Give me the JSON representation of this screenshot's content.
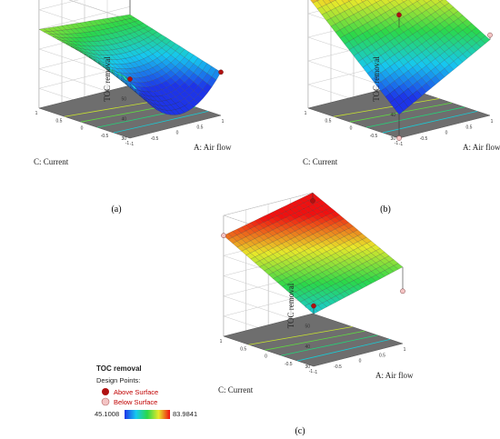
{
  "chart_data": [
    {
      "type": "surface3d",
      "panel_label": "(a)",
      "zlabel": "TOC removal",
      "xlabel": "A: Air flow",
      "ylabel": "C: Current",
      "zlim": [
        30,
        90
      ],
      "zticks": [
        30,
        40,
        50,
        60,
        70,
        80,
        90
      ],
      "xticks": [
        -1,
        -0.5,
        0,
        0.5,
        1
      ],
      "yticks": [
        -1,
        -0.5,
        0,
        0.5,
        1
      ],
      "x_tick_labels": [
        "-1",
        "-0.5",
        "0",
        "0.5",
        "1"
      ],
      "y_tick_labels": [
        "-1",
        "-0.5",
        "0",
        "0.5",
        "1"
      ],
      "surface_corners": {
        "A-1_C-1": 60,
        "A1_C-1": 52,
        "A-1_C1": 70,
        "A1_C1": 66,
        "A0_C-1": 36
      },
      "points": [
        {
          "A": -1,
          "C": -1,
          "value": 60,
          "position": "above"
        },
        {
          "A": 1,
          "C": 1,
          "value": 80,
          "position": "above"
        },
        {
          "A": 1,
          "C": -1,
          "value": 52,
          "position": "above"
        }
      ]
    },
    {
      "type": "surface3d",
      "panel_label": "(b)",
      "zlabel": "TOC removal",
      "xlabel": "A: Air flow",
      "ylabel": "C: Current",
      "zlim": [
        30,
        80
      ],
      "zticks": [
        30,
        40,
        50,
        60,
        70,
        80
      ],
      "xticks": [
        -1,
        -0.5,
        0,
        0.5,
        1
      ],
      "yticks": [
        -1,
        -0.5,
        0,
        0.5,
        1
      ],
      "x_tick_labels": [
        "-1",
        "-0.5",
        "0",
        "0.5",
        "1"
      ],
      "y_tick_labels": [
        "-1",
        "-0.5",
        "0",
        "0.5",
        "1"
      ],
      "surface_corners": {
        "A-1_C-1": 40,
        "A1_C-1": 62,
        "A-1_C1": 77,
        "A1_C1": 84
      },
      "points": [
        {
          "A": -1,
          "C": 1,
          "value": 78,
          "position": "above"
        },
        {
          "A": 0,
          "C": 0,
          "value": 71,
          "position": "above"
        },
        {
          "A": 1,
          "C": -1,
          "value": 64,
          "position": "below"
        },
        {
          "A": -1,
          "C": -1,
          "value": 30,
          "position": "below"
        }
      ]
    },
    {
      "type": "surface3d",
      "panel_label": "(c)",
      "zlabel": "TOC removal",
      "xlabel": "A: Air flow",
      "ylabel": "C: Current",
      "zlim": [
        30,
        90
      ],
      "zticks": [
        30,
        40,
        50,
        60,
        70,
        80,
        90
      ],
      "xticks": [
        -1,
        -0.5,
        0,
        0.5,
        1
      ],
      "yticks": [
        -1,
        -0.5,
        0,
        0.5,
        1
      ],
      "x_tick_labels": [
        "-1",
        "-0.5",
        "0",
        "0.5",
        "1"
      ],
      "y_tick_labels": [
        "-1",
        "-0.5",
        "0",
        "0.5",
        "1"
      ],
      "surface_corners": {
        "A-1_C-1": 56,
        "A1_C-1": 68,
        "A-1_C1": 80,
        "A1_C1": 90
      },
      "points": [
        {
          "A": -1,
          "C": -1,
          "value": 60,
          "position": "above"
        },
        {
          "A": 1,
          "C": 1,
          "value": 86,
          "position": "above"
        },
        {
          "A": -1,
          "C": 1,
          "value": 80,
          "position": "below"
        },
        {
          "A": 1,
          "C": -1,
          "value": 56,
          "position": "below"
        }
      ]
    }
  ],
  "legend": {
    "title": "TOC removal",
    "design_points_label": "Design Points:",
    "above_label": "Above Surface",
    "below_label": "Below Surface",
    "min_label": "45.1008",
    "max_label": "83.9841",
    "colors": {
      "above": "#b01010",
      "below": "#f4c4c4",
      "ramp": [
        "#1d34e8",
        "#16c8f0",
        "#2ad84a",
        "#e8e82a",
        "#f01010"
      ]
    }
  },
  "colors": {
    "floor": "#6e6e6e",
    "wall": "#ffffff",
    "grid": "#c8c8c8"
  }
}
